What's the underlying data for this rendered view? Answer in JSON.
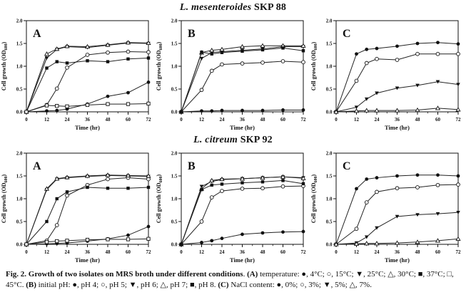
{
  "figure": {
    "row1_title": {
      "italic": "L. mesenteroides",
      "rest": " SKP 88"
    },
    "row2_title": {
      "italic": "L. citreum",
      "rest": " SKP 92"
    },
    "caption_segments": [
      {
        "bold": true,
        "text": "Fig. 2. Growth of two isolates on MRS broth under different conditions"
      },
      {
        "bold": false,
        "text": ". "
      },
      {
        "bold": true,
        "text": "(A)"
      },
      {
        "bold": false,
        "text": " temperature: ●, 4°C; ○, 15°C; ▼, 25°C; △, 30°C; ■, 37°C; □, 45°C. "
      },
      {
        "bold": true,
        "text": "(B)"
      },
      {
        "bold": false,
        "text": " initial pH: ●, pH 4; ○, pH 5; ▼, pH 6; △, pH 7; ■, pH 8. "
      },
      {
        "bold": true,
        "text": "(C)"
      },
      {
        "bold": false,
        "text": " NaCl content: ●, 0%; ○, 3%; ▼, 5%; △, 7%."
      }
    ],
    "colors": {
      "ink": "#111111",
      "line": "#222222",
      "background": "#ffffff"
    }
  },
  "chart_data": [
    {
      "type": "line",
      "panel": "A",
      "group": "L. mesenteroides SKP 88",
      "condition": "temperature",
      "xlabel": "Time (hr)",
      "ylabel": "Cell growth (OD600)",
      "ylabel_parts": {
        "pre": "Cell growth (OD",
        "sub": "600",
        "post": ")"
      },
      "xlim": [
        0,
        72
      ],
      "ylim": [
        0,
        2.0
      ],
      "xticks": [
        0,
        12,
        24,
        36,
        48,
        60,
        72
      ],
      "xminor": [
        6,
        18,
        30,
        42,
        54,
        66
      ],
      "yticks": [
        0.0,
        0.5,
        1.0,
        1.5,
        2.0
      ],
      "x": [
        0,
        12,
        18,
        24,
        36,
        48,
        60,
        72
      ],
      "series": [
        {
          "name": "4°C",
          "marker": "filled-circle",
          "values": [
            0,
            0.02,
            0.03,
            0.06,
            0.17,
            0.34,
            0.42,
            0.65
          ]
        },
        {
          "name": "15°C",
          "marker": "open-circle",
          "values": [
            0,
            0.15,
            0.51,
            0.97,
            1.25,
            1.3,
            1.32,
            1.31
          ]
        },
        {
          "name": "25°C",
          "marker": "filled-triangle-down",
          "values": [
            0,
            1.18,
            1.37,
            1.43,
            1.41,
            1.46,
            1.51,
            1.5
          ]
        },
        {
          "name": "30°C",
          "marker": "open-triangle-up",
          "values": [
            0,
            1.27,
            1.38,
            1.44,
            1.43,
            1.47,
            1.52,
            1.51
          ]
        },
        {
          "name": "37°C",
          "marker": "filled-square",
          "values": [
            0,
            0.96,
            1.1,
            1.07,
            1.12,
            1.1,
            1.16,
            1.18
          ]
        },
        {
          "name": "45°C",
          "marker": "open-square",
          "values": [
            0,
            0.14,
            0.13,
            0.12,
            0.15,
            0.17,
            0.17,
            0.18
          ]
        }
      ]
    },
    {
      "type": "line",
      "panel": "B",
      "group": "L. mesenteroides SKP 88",
      "condition": "initial pH",
      "xlabel": "Time (hr)",
      "ylabel": "Cell growth (OD600)",
      "ylabel_parts": {
        "pre": "Cell growth (OD",
        "sub": "600",
        "post": ")"
      },
      "xlim": [
        0,
        72
      ],
      "ylim": [
        0,
        2.0
      ],
      "xticks": [
        0,
        12,
        24,
        36,
        48,
        60,
        72
      ],
      "xminor": [
        6,
        18,
        30,
        42,
        54,
        66
      ],
      "yticks": [
        0.0,
        0.5,
        1.0,
        1.5,
        2.0
      ],
      "x": [
        0,
        12,
        18,
        24,
        36,
        48,
        60,
        72
      ],
      "series": [
        {
          "name": "pH 4",
          "marker": "filled-circle",
          "values": [
            0,
            0.02,
            0.02,
            0.03,
            0.03,
            0.03,
            0.04,
            0.04
          ]
        },
        {
          "name": "pH 5",
          "marker": "open-circle",
          "values": [
            0,
            0.48,
            0.9,
            1.04,
            1.06,
            1.08,
            1.11,
            1.09
          ]
        },
        {
          "name": "pH 6",
          "marker": "filled-triangle-down",
          "values": [
            0,
            1.17,
            1.3,
            1.32,
            1.35,
            1.38,
            1.43,
            1.43
          ]
        },
        {
          "name": "pH 7",
          "marker": "open-triangle-up",
          "values": [
            0,
            1.3,
            1.35,
            1.37,
            1.43,
            1.45,
            1.45,
            1.45
          ]
        },
        {
          "name": "pH 8",
          "marker": "filled-square",
          "values": [
            0,
            1.31,
            1.27,
            1.3,
            1.33,
            1.36,
            1.4,
            1.34
          ]
        }
      ]
    },
    {
      "type": "line",
      "panel": "C",
      "group": "L. mesenteroides SKP 88",
      "condition": "NaCl content",
      "xlabel": "Time (hr)",
      "ylabel": "Cell growth (OD600)",
      "ylabel_parts": {
        "pre": "Cell growth (OD",
        "sub": "600",
        "post": ")"
      },
      "xlim": [
        0,
        72
      ],
      "ylim": [
        0,
        2.0
      ],
      "xticks": [
        0,
        12,
        24,
        36,
        48,
        60,
        72
      ],
      "xminor": [
        6,
        18,
        30,
        42,
        54,
        66
      ],
      "yticks": [
        0.0,
        0.5,
        1.0,
        1.5,
        2.0
      ],
      "x": [
        0,
        12,
        18,
        24,
        36,
        48,
        60,
        72
      ],
      "series": [
        {
          "name": "0%",
          "marker": "filled-circle",
          "values": [
            0,
            1.27,
            1.37,
            1.39,
            1.44,
            1.5,
            1.52,
            1.49
          ]
        },
        {
          "name": "3%",
          "marker": "open-circle",
          "values": [
            0,
            0.68,
            1.07,
            1.16,
            1.14,
            1.27,
            1.27,
            1.27
          ]
        },
        {
          "name": "5%",
          "marker": "filled-triangle-down",
          "values": [
            0,
            0.1,
            0.28,
            0.41,
            0.52,
            0.58,
            0.66,
            0.6
          ]
        },
        {
          "name": "7%",
          "marker": "open-triangle-up",
          "values": [
            0,
            0.02,
            0.03,
            0.03,
            0.03,
            0.04,
            0.08,
            0.05
          ]
        }
      ]
    },
    {
      "type": "line",
      "panel": "A",
      "group": "L. citreum SKP 92",
      "condition": "temperature",
      "xlabel": "Time (hr)",
      "ylabel": "Cell growth (OD600)",
      "ylabel_parts": {
        "pre": "Cell growth (OD",
        "sub": "600",
        "post": ")"
      },
      "xlim": [
        0,
        72
      ],
      "ylim": [
        0,
        2.0
      ],
      "xticks": [
        0,
        12,
        24,
        36,
        48,
        60,
        72
      ],
      "xminor": [
        6,
        18,
        30,
        42,
        54,
        66
      ],
      "yticks": [
        0.0,
        0.5,
        1.0,
        1.5,
        2.0
      ],
      "x": [
        0,
        12,
        18,
        24,
        36,
        48,
        60,
        72
      ],
      "series": [
        {
          "name": "4°C",
          "marker": "filled-circle",
          "values": [
            0,
            0.01,
            0.02,
            0.03,
            0.07,
            0.12,
            0.2,
            0.39
          ]
        },
        {
          "name": "15°C",
          "marker": "open-circle",
          "values": [
            0,
            0.08,
            0.42,
            1.07,
            1.3,
            1.43,
            1.46,
            1.43
          ]
        },
        {
          "name": "25°C",
          "marker": "filled-triangle-down",
          "values": [
            0,
            1.2,
            1.43,
            1.46,
            1.49,
            1.51,
            1.5,
            1.49
          ]
        },
        {
          "name": "30°C",
          "marker": "open-triangle-up",
          "values": [
            0,
            1.22,
            1.44,
            1.47,
            1.5,
            1.52,
            1.51,
            1.5
          ]
        },
        {
          "name": "37°C",
          "marker": "filled-square",
          "values": [
            0,
            0.5,
            1.0,
            1.15,
            1.25,
            1.23,
            1.23,
            1.25
          ]
        },
        {
          "name": "45°C",
          "marker": "open-square",
          "values": [
            0,
            0.05,
            0.07,
            0.08,
            0.1,
            0.11,
            0.11,
            0.12
          ]
        }
      ]
    },
    {
      "type": "line",
      "panel": "B",
      "group": "L. citreum SKP 92",
      "condition": "initial pH",
      "xlabel": "Time (hr)",
      "ylabel": "Cell growth (OD600)",
      "ylabel_parts": {
        "pre": "Cell growth (OD",
        "sub": "600",
        "post": ")"
      },
      "xlim": [
        0,
        72
      ],
      "ylim": [
        0,
        2.0
      ],
      "xticks": [
        0,
        12,
        24,
        36,
        48,
        60,
        72
      ],
      "xminor": [
        6,
        18,
        30,
        42,
        54,
        66
      ],
      "yticks": [
        0.0,
        0.5,
        1.0,
        1.5,
        2.0
      ],
      "x": [
        0,
        12,
        18,
        24,
        36,
        48,
        60,
        72
      ],
      "series": [
        {
          "name": "pH 4",
          "marker": "filled-circle",
          "values": [
            0,
            0.04,
            0.08,
            0.13,
            0.22,
            0.25,
            0.27,
            0.28
          ]
        },
        {
          "name": "pH 5",
          "marker": "open-circle",
          "values": [
            0,
            0.5,
            1.03,
            1.17,
            1.22,
            1.23,
            1.27,
            1.28
          ]
        },
        {
          "name": "pH 6",
          "marker": "filled-triangle-down",
          "values": [
            0,
            1.27,
            1.38,
            1.42,
            1.44,
            1.46,
            1.48,
            1.46
          ]
        },
        {
          "name": "pH 7",
          "marker": "open-triangle-up",
          "values": [
            0,
            1.22,
            1.4,
            1.43,
            1.44,
            1.46,
            1.48,
            1.45
          ]
        },
        {
          "name": "pH 8",
          "marker": "filled-square",
          "values": [
            0,
            1.2,
            1.3,
            1.32,
            1.35,
            1.37,
            1.4,
            1.33
          ]
        }
      ]
    },
    {
      "type": "line",
      "panel": "C",
      "group": "L. citreum SKP 92",
      "condition": "NaCl content",
      "xlabel": "Time (hr)",
      "ylabel": "Cell growth (OD600)",
      "ylabel_parts": {
        "pre": "Cell growth (OD",
        "sub": "600",
        "post": ")"
      },
      "xlim": [
        0,
        72
      ],
      "ylim": [
        0,
        2.0
      ],
      "xticks": [
        0,
        12,
        24,
        36,
        48,
        60,
        72
      ],
      "xminor": [
        6,
        18,
        30,
        42,
        54,
        66
      ],
      "yticks": [
        0.0,
        0.5,
        1.0,
        1.5,
        2.0
      ],
      "x": [
        0,
        12,
        18,
        24,
        36,
        48,
        60,
        72
      ],
      "series": [
        {
          "name": "0%",
          "marker": "filled-circle",
          "values": [
            0,
            1.22,
            1.43,
            1.46,
            1.5,
            1.52,
            1.52,
            1.5
          ]
        },
        {
          "name": "3%",
          "marker": "open-circle",
          "values": [
            0,
            0.34,
            0.92,
            1.15,
            1.23,
            1.25,
            1.3,
            1.31
          ]
        },
        {
          "name": "5%",
          "marker": "filled-triangle-down",
          "values": [
            0,
            0.03,
            0.16,
            0.36,
            0.61,
            0.65,
            0.67,
            0.7
          ]
        },
        {
          "name": "7%",
          "marker": "open-triangle-up",
          "values": [
            0,
            0.01,
            0.02,
            0.02,
            0.03,
            0.05,
            0.08,
            0.12
          ]
        }
      ]
    }
  ]
}
